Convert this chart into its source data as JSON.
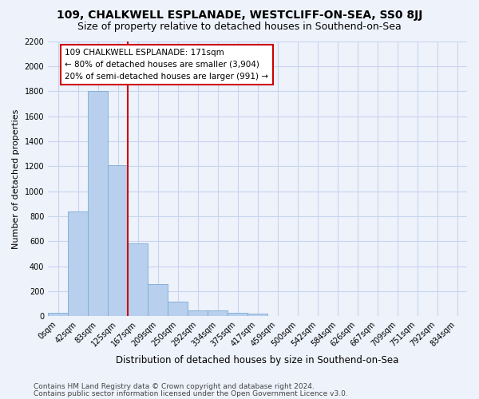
{
  "title": "109, CHALKWELL ESPLANADE, WESTCLIFF-ON-SEA, SS0 8JJ",
  "subtitle": "Size of property relative to detached houses in Southend-on-Sea",
  "xlabel": "Distribution of detached houses by size in Southend-on-Sea",
  "ylabel": "Number of detached properties",
  "footer_line1": "Contains HM Land Registry data © Crown copyright and database right 2024.",
  "footer_line2": "Contains public sector information licensed under the Open Government Licence v3.0.",
  "bar_labels": [
    "0sqm",
    "42sqm",
    "83sqm",
    "125sqm",
    "167sqm",
    "209sqm",
    "250sqm",
    "292sqm",
    "334sqm",
    "375sqm",
    "417sqm",
    "459sqm",
    "500sqm",
    "542sqm",
    "584sqm",
    "626sqm",
    "667sqm",
    "709sqm",
    "751sqm",
    "792sqm",
    "834sqm"
  ],
  "bar_values": [
    25,
    840,
    1800,
    1210,
    585,
    260,
    115,
    50,
    45,
    30,
    20,
    0,
    0,
    0,
    0,
    0,
    0,
    0,
    0,
    0,
    0
  ],
  "bar_color": "#b8d0ee",
  "bar_edge_color": "#7aaad4",
  "ylim": [
    0,
    2200
  ],
  "yticks": [
    0,
    200,
    400,
    600,
    800,
    1000,
    1200,
    1400,
    1600,
    1800,
    2000,
    2200
  ],
  "property_line_x": 3.5,
  "property_line_color": "#cc0000",
  "annotation_text": "109 CHALKWELL ESPLANADE: 171sqm\n← 80% of detached houses are smaller (3,904)\n20% of semi-detached houses are larger (991) →",
  "annotation_box_color": "#ffffff",
  "annotation_box_edge": "#cc0000",
  "bg_color": "#eef2fb",
  "grid_color": "#c8d4ee",
  "title_fontsize": 10,
  "subtitle_fontsize": 9,
  "ylabel_fontsize": 8,
  "xlabel_fontsize": 8.5,
  "tick_fontsize": 7,
  "footer_fontsize": 6.5,
  "annot_fontsize": 7.5
}
